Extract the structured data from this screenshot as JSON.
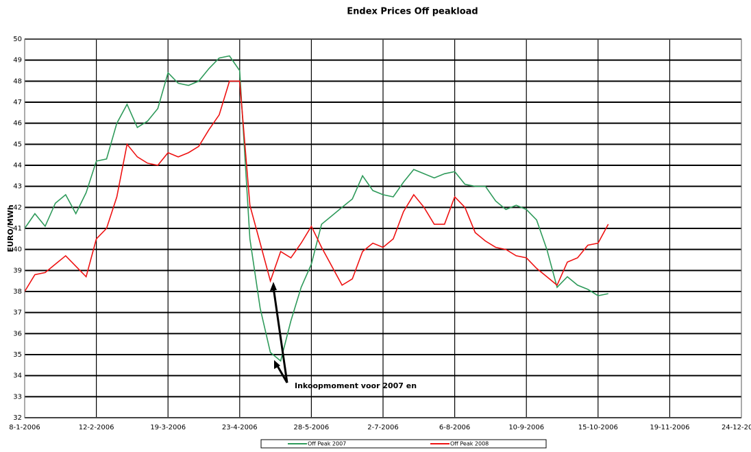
{
  "chart_data": {
    "type": "line",
    "title": "Endex Prices Off peakload",
    "ylabel": "EURO/MWh",
    "annotation": "Inkoopmoment voor 2007 en",
    "x": [
      "2006-01-08",
      "2006-01-13",
      "2006-01-18",
      "2006-01-23",
      "2006-01-28",
      "2006-02-02",
      "2006-02-07",
      "2006-02-12",
      "2006-02-17",
      "2006-02-22",
      "2006-02-27",
      "2006-03-04",
      "2006-03-09",
      "2006-03-14",
      "2006-03-19",
      "2006-03-24",
      "2006-03-29",
      "2006-04-03",
      "2006-04-08",
      "2006-04-13",
      "2006-04-18",
      "2006-04-23",
      "2006-04-28",
      "2006-05-03",
      "2006-05-08",
      "2006-05-13",
      "2006-05-18",
      "2006-05-23",
      "2006-05-28",
      "2006-06-02",
      "2006-06-07",
      "2006-06-12",
      "2006-06-17",
      "2006-06-22",
      "2006-06-27",
      "2006-07-02",
      "2006-07-07",
      "2006-07-12",
      "2006-07-17",
      "2006-07-22",
      "2006-07-27",
      "2006-08-01",
      "2006-08-06",
      "2006-08-11",
      "2006-08-16",
      "2006-08-21",
      "2006-08-26",
      "2006-08-31",
      "2006-09-05",
      "2006-09-10",
      "2006-09-15",
      "2006-09-20",
      "2006-09-25",
      "2006-09-30",
      "2006-10-05",
      "2006-10-10",
      "2006-10-15",
      "2006-10-20"
    ],
    "series": [
      {
        "name": "Off Peak 2007",
        "color": "#2e9a5a",
        "values": [
          41.0,
          41.7,
          41.1,
          42.2,
          42.6,
          41.7,
          42.7,
          44.2,
          44.3,
          46.0,
          46.9,
          45.8,
          46.1,
          46.7,
          48.4,
          47.9,
          47.8,
          48.0,
          48.6,
          49.1,
          49.2,
          48.5,
          40.5,
          37.2,
          35.1,
          34.7,
          36.6,
          38.2,
          39.3,
          41.2,
          41.6,
          42.0,
          42.4,
          43.5,
          42.8,
          42.6,
          42.5,
          43.2,
          43.8,
          43.6,
          43.4,
          43.6,
          43.7,
          43.1,
          43.0,
          43.0,
          42.3,
          41.9,
          42.1,
          41.9,
          41.4,
          40.0,
          38.2,
          38.7,
          38.3,
          38.1,
          37.8,
          37.9
        ]
      },
      {
        "name": "Off Peak 2008",
        "color": "#ee1111",
        "values": [
          38.0,
          38.8,
          38.9,
          39.3,
          39.7,
          39.2,
          38.7,
          40.5,
          41.0,
          42.5,
          45.0,
          44.4,
          44.1,
          44.0,
          44.6,
          44.4,
          44.6,
          44.9,
          45.7,
          46.4,
          48.0,
          48.0,
          42.1,
          40.3,
          38.5,
          39.9,
          39.6,
          40.3,
          41.1,
          40.1,
          39.2,
          38.3,
          38.6,
          39.9,
          40.3,
          40.1,
          40.5,
          41.8,
          42.6,
          42.0,
          41.2,
          41.2,
          42.5,
          42.0,
          40.8,
          40.4,
          40.1,
          40.0,
          39.7,
          39.6,
          39.1,
          38.7,
          38.3,
          39.4,
          39.6,
          40.2,
          40.3,
          41.2
        ]
      }
    ],
    "xlim": [
      "2006-01-08",
      "2006-12-24"
    ],
    "xticks": [
      {
        "value": "2006-01-08",
        "label": "8-1-2006"
      },
      {
        "value": "2006-02-12",
        "label": "12-2-2006"
      },
      {
        "value": "2006-03-19",
        "label": "19-3-2006"
      },
      {
        "value": "2006-04-23",
        "label": "23-4-2006"
      },
      {
        "value": "2006-05-28",
        "label": "28-5-2006"
      },
      {
        "value": "2006-07-02",
        "label": "2-7-2006"
      },
      {
        "value": "2006-08-06",
        "label": "6-8-2006"
      },
      {
        "value": "2006-09-10",
        "label": "10-9-2006"
      },
      {
        "value": "2006-10-15",
        "label": "15-10-2006"
      },
      {
        "value": "2006-11-19",
        "label": "19-11-2006"
      },
      {
        "value": "2006-12-24",
        "label": "24-12-2006"
      }
    ],
    "ylim": [
      32,
      50
    ],
    "yticks": [
      32,
      33,
      34,
      35,
      36,
      37,
      38,
      39,
      40,
      41,
      42,
      43,
      44,
      45,
      46,
      47,
      48,
      49,
      50
    ],
    "grid": true
  }
}
